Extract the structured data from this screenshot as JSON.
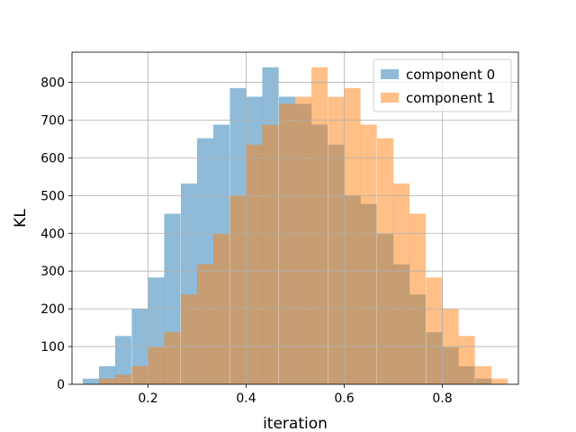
{
  "chart_data": {
    "type": "bar",
    "title": "",
    "xlabel": "iteration",
    "ylabel": "KL",
    "xlim": [
      0.045,
      0.955
    ],
    "ylim": [
      0,
      880
    ],
    "grid": true,
    "legend_position": "top-right",
    "xticks": [
      0.2,
      0.4,
      0.6,
      0.8
    ],
    "xtick_labels": [
      "0.2",
      "0.4",
      "0.6",
      "0.8"
    ],
    "yticks": [
      0,
      100,
      200,
      300,
      400,
      500,
      600,
      700,
      800
    ],
    "ytick_labels": [
      "0",
      "100",
      "200",
      "300",
      "400",
      "500",
      "600",
      "700",
      "800"
    ],
    "series": [
      {
        "name": "component 0",
        "color": "#1f77b4",
        "opacity": 0.5,
        "bin_width": 0.0333,
        "bin_starts": [
          0.067,
          0.1,
          0.133,
          0.167,
          0.2,
          0.233,
          0.267,
          0.3,
          0.333,
          0.367,
          0.4,
          0.433,
          0.467,
          0.5,
          0.533,
          0.567,
          0.6,
          0.633,
          0.667,
          0.7,
          0.733,
          0.767,
          0.8,
          0.833,
          0.867
        ],
        "values": [
          15,
          48,
          128,
          200,
          283,
          452,
          532,
          652,
          688,
          785,
          762,
          840,
          762,
          743,
          688,
          635,
          500,
          478,
          398,
          318,
          238,
          138,
          98,
          48,
          15
        ]
      },
      {
        "name": "component 1",
        "color": "#ff7f0e",
        "opacity": 0.5,
        "bin_width": 0.0333,
        "bin_starts": [
          0.1,
          0.133,
          0.167,
          0.2,
          0.233,
          0.267,
          0.3,
          0.333,
          0.367,
          0.4,
          0.433,
          0.467,
          0.5,
          0.533,
          0.567,
          0.6,
          0.633,
          0.667,
          0.7,
          0.733,
          0.767,
          0.8,
          0.833,
          0.867,
          0.9
        ],
        "values": [
          15,
          25,
          48,
          98,
          138,
          238,
          318,
          398,
          500,
          635,
          688,
          743,
          762,
          840,
          762,
          785,
          688,
          652,
          532,
          452,
          283,
          200,
          128,
          48,
          15
        ]
      }
    ]
  }
}
